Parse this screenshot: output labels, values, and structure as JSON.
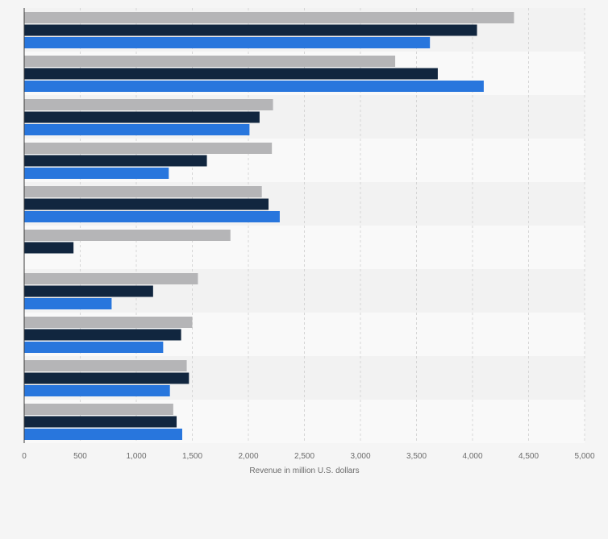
{
  "chart_data": {
    "type": "bar",
    "orientation": "horizontal",
    "title": "",
    "xlabel": "Revenue in million U.S. dollars",
    "ylabel": "",
    "xlim": [
      0,
      5000
    ],
    "x_ticks": [
      0,
      500,
      1000,
      1500,
      2000,
      2500,
      3000,
      3500,
      4000,
      4500,
      5000
    ],
    "x_tick_labels": [
      "0",
      "500",
      "1,000",
      "1,500",
      "2,000",
      "2,500",
      "3,000",
      "3,500",
      "4,000",
      "4,500",
      "5,000"
    ],
    "grid": true,
    "legend": "none",
    "category_count": 10,
    "series": [
      {
        "color": "#b5b5b7",
        "values": [
          4370,
          3310,
          2220,
          2210,
          2120,
          1840,
          1550,
          1500,
          1450,
          1330
        ]
      },
      {
        "color": "#11263f",
        "values": [
          4040,
          3690,
          2100,
          1630,
          2180,
          440,
          1150,
          1400,
          1470,
          1360
        ]
      },
      {
        "color": "#2876dd",
        "values": [
          3620,
          4100,
          2010,
          1290,
          2280,
          null,
          780,
          1240,
          1300,
          1410
        ]
      }
    ]
  }
}
